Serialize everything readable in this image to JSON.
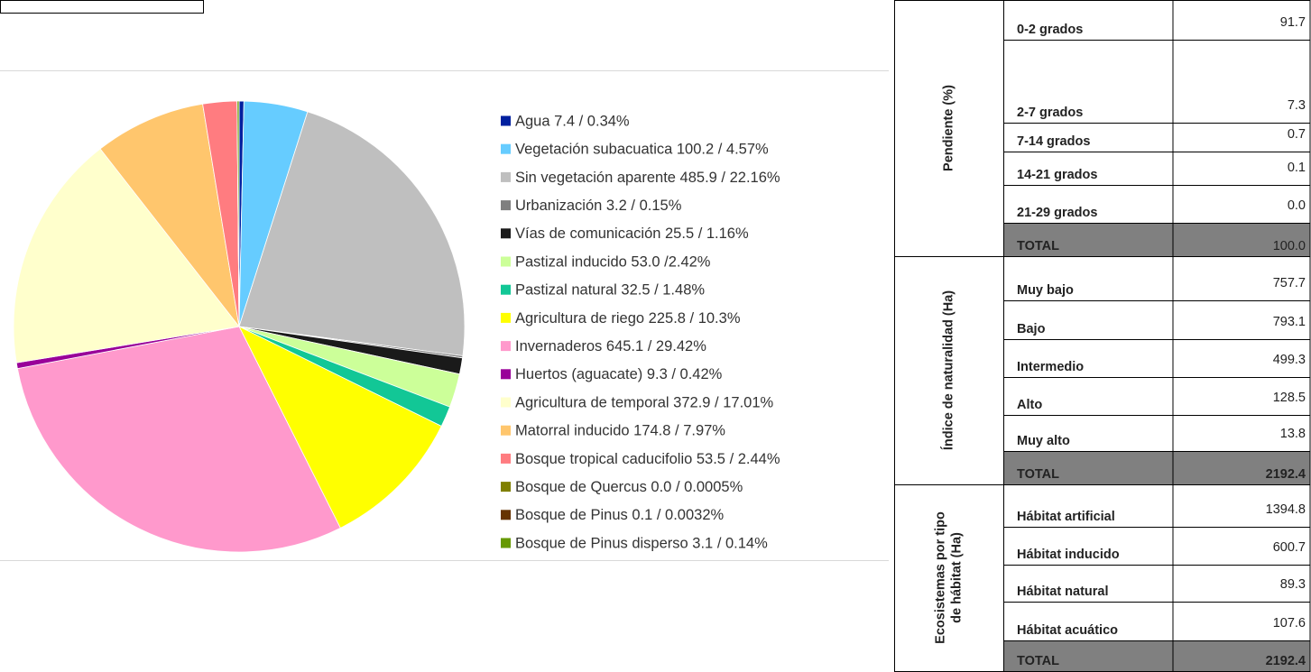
{
  "chart_data": {
    "type": "pie",
    "categories": [
      "Agua 7.4 / 0.34%",
      "Vegetación subacuatica 100.2 / 4.57%",
      "Sin vegetación aparente 485.9 / 22.16%",
      "Urbanización 3.2 / 0.15%",
      "Vías de comunicación 25.5 / 1.16%",
      "Pastizal inducido 53.0 /2.42%",
      "Pastizal natural 32.5 / 1.48%",
      "Agricultura de riego 225.8 / 10.3%",
      "Invernaderos 645.1 / 29.42%",
      "Huertos (aguacate) 9.3 / 0.42%",
      "Agricultura de temporal 372.9 / 17.01%",
      "Matorral inducido 174.8 / 7.97%",
      "Bosque tropical caducifolio 53.5 / 2.44%",
      "Bosque de Quercus 0.0 / 0.0005%",
      "Bosque de Pinus 0.1 / 0.0032%",
      "Bosque de Pinus disperso 3.1 / 0.14%"
    ],
    "values": [
      0.34,
      4.57,
      22.16,
      0.15,
      1.16,
      2.42,
      1.48,
      10.3,
      29.42,
      0.42,
      17.01,
      7.97,
      2.44,
      0.0005,
      0.0032,
      0.14
    ],
    "colors": [
      "#00209f",
      "#66ccff",
      "#bfbfbf",
      "#7f7f7f",
      "#1a1a1a",
      "#ccff99",
      "#12c796",
      "#ffff00",
      "#ff99cc",
      "#990099",
      "#ffffcc",
      "#ffc66d",
      "#ff7c80",
      "#808000",
      "#663300",
      "#669900"
    ],
    "legend": "right"
  },
  "table": {
    "sections": [
      {
        "label": [
          "Pendiente  (%)"
        ],
        "rows": [
          [
            "0-2 grados",
            "91.7"
          ],
          [
            "2-7 grados",
            "7.3"
          ],
          [
            "7-14 grados",
            "0.7"
          ],
          [
            "14-21 grados",
            "0.1"
          ],
          [
            "21-29 grados",
            "0.0"
          ],
          [
            "TOTAL",
            "100.0"
          ]
        ]
      },
      {
        "label": [
          "Índice de naturalidad (Ha)"
        ],
        "rows": [
          [
            "Muy bajo",
            "757.7"
          ],
          [
            "Bajo",
            "793.1"
          ],
          [
            "Intermedio",
            "499.3"
          ],
          [
            "Alto",
            "128.5"
          ],
          [
            "Muy alto",
            "13.8"
          ],
          [
            "TOTAL",
            "2192.4"
          ]
        ]
      },
      {
        "label": [
          "Ecosistemas por tipo",
          "de hábitat (Ha)"
        ],
        "rows": [
          [
            "Hábitat artificial",
            "1394.8"
          ],
          [
            "Hábitat inducido",
            "600.7"
          ],
          [
            "Hábitat natural",
            "89.3"
          ],
          [
            "Hábitat acuático",
            "107.6"
          ],
          [
            "TOTAL",
            "2192.4"
          ]
        ]
      }
    ]
  }
}
